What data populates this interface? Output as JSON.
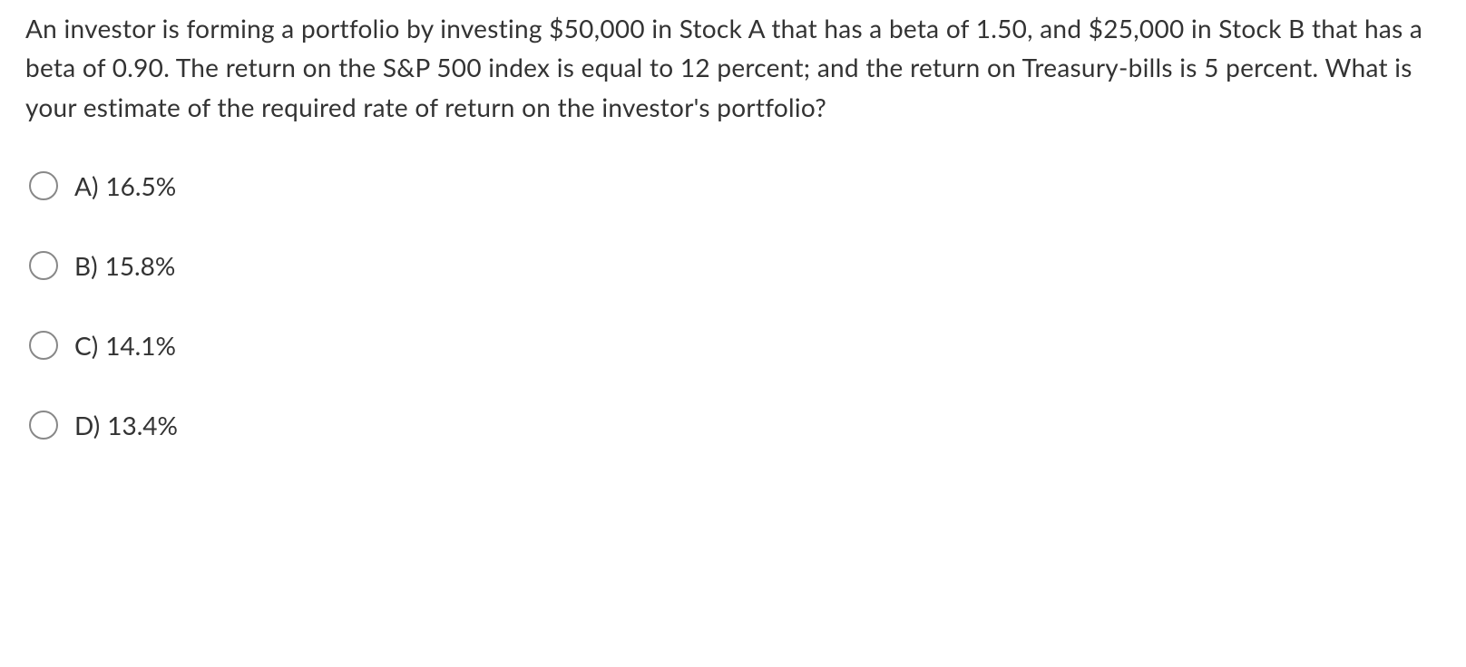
{
  "question": {
    "text": "An investor is forming a portfolio by investing $50,000 in Stock A that has a beta of 1.50, and $25,000 in Stock B that has a beta of 0.90. The return on the S&P 500 index is equal to 12 percent; and the return on Treasury-bills is 5 percent. What is your estimate of the required rate of return on the investor's portfolio?"
  },
  "options": [
    {
      "letter": "A)",
      "value": "16.5%"
    },
    {
      "letter": "B)",
      "value": "15.8%"
    },
    {
      "letter": "C)",
      "value": "14.1%"
    },
    {
      "letter": "D)",
      "value": "13.4%"
    }
  ],
  "style": {
    "text_color": "#333333",
    "background_color": "#ffffff",
    "radio_border_color": "#888888",
    "font_size_question": 28,
    "font_size_option": 28,
    "line_height": 1.55
  }
}
